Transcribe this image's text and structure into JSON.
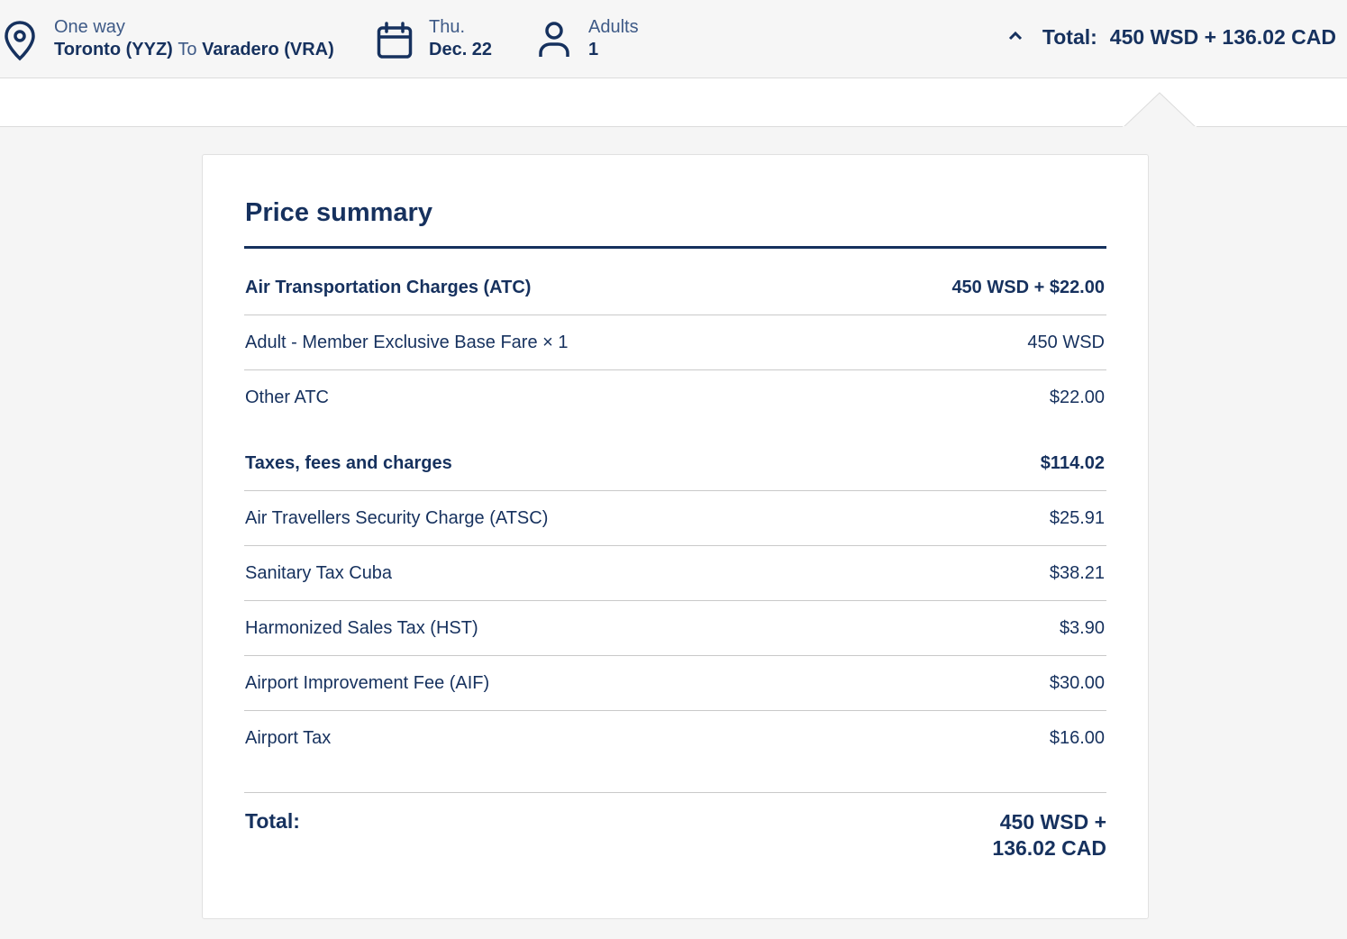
{
  "header": {
    "trip_type": "One way",
    "origin": "Toronto (YYZ)",
    "connector": "To",
    "destination": "Varadero (VRA)",
    "date_day": "Thu.",
    "date": "Dec. 22",
    "passengers_label": "Adults",
    "passengers_count": "1",
    "total_label": "Total:",
    "total_value": "450 WSD + 136.02 CAD",
    "icons": [
      "location-pin-icon",
      "calendar-icon",
      "person-icon",
      "chevron-up-icon"
    ]
  },
  "price_summary": {
    "title": "Price summary",
    "atc": {
      "heading": "Air Transportation Charges (ATC)",
      "heading_amount": "450 WSD + $22.00",
      "items": [
        {
          "label": "Adult - Member Exclusive Base Fare × 1",
          "amount": "450 WSD"
        },
        {
          "label": "Other ATC",
          "amount": "$22.00"
        }
      ]
    },
    "taxes": {
      "heading": "Taxes, fees and charges",
      "heading_amount": "$114.02",
      "items": [
        {
          "label": "Air Travellers Security Charge (ATSC)",
          "amount": "$25.91"
        },
        {
          "label": "Sanitary Tax Cuba",
          "amount": "$38.21"
        },
        {
          "label": "Harmonized Sales Tax (HST)",
          "amount": "$3.90"
        },
        {
          "label": "Airport Improvement Fee (AIF)",
          "amount": "$30.00"
        },
        {
          "label": "Airport Tax",
          "amount": "$16.00"
        }
      ]
    },
    "total_label": "Total:",
    "total_line1": "450 WSD +",
    "total_line2": "136.02 CAD"
  },
  "colors": {
    "primary": "#16315e",
    "secondary_text": "#3e5a87",
    "page_background": "#f5f5f5",
    "card_background": "#ffffff",
    "divider": "#c9c9c9"
  }
}
